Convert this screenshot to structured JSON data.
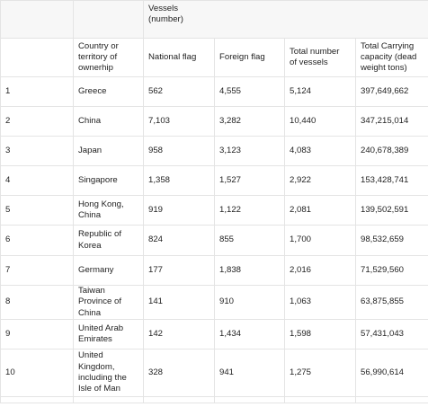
{
  "table": {
    "group_header": [
      "Vessels",
      "(number)"
    ],
    "columns": [
      {
        "lines": [
          "Country or",
          "territory of",
          "ownerhip"
        ]
      },
      {
        "lines": [
          "National flag"
        ]
      },
      {
        "lines": [
          "Foreign flag"
        ]
      },
      {
        "lines": [
          "Total number",
          "of vessels"
        ]
      },
      {
        "lines": [
          "Total Carrying",
          "capacity (dead",
          "weight tons)"
        ]
      }
    ],
    "rows": [
      {
        "rank": "1",
        "country": [
          "Greece"
        ],
        "national": "562",
        "foreign": "4,555",
        "total": "5,124",
        "capacity": "397,649,662"
      },
      {
        "rank": "2",
        "country": [
          "China"
        ],
        "national": "7,103",
        "foreign": "3,282",
        "total": "10,440",
        "capacity": "347,215,014"
      },
      {
        "rank": "3",
        "country": [
          "Japan"
        ],
        "national": "958",
        "foreign": "3,123",
        "total": "4,083",
        "capacity": "240,678,389"
      },
      {
        "rank": "4",
        "country": [
          "Singapore"
        ],
        "national": "1,358",
        "foreign": "1,527",
        "total": "2,922",
        "capacity": "153,428,741"
      },
      {
        "rank": "5",
        "country": [
          "Hong Kong,",
          "China"
        ],
        "national": "919",
        "foreign": "1,122",
        "total": "2,081",
        "capacity": "139,502,591"
      },
      {
        "rank": "6",
        "country": [
          "Republic of",
          "Korea"
        ],
        "national": "824",
        "foreign": "855",
        "total": "1,700",
        "capacity": "98,532,659"
      },
      {
        "rank": "7",
        "country": [
          "Germany"
        ],
        "national": "177",
        "foreign": "1,838",
        "total": "2,016",
        "capacity": "71,529,560"
      },
      {
        "rank": "8",
        "country": [
          "Taiwan",
          "Province of",
          "China"
        ],
        "national": "141",
        "foreign": "910",
        "total": "1,063",
        "capacity": "63,875,855"
      },
      {
        "rank": "9",
        "country": [
          "United Arab",
          "Emirates"
        ],
        "national": "142",
        "foreign": "1,434",
        "total": "1,598",
        "capacity": "57,431,043"
      },
      {
        "rank": "10",
        "country": [
          "United",
          "Kingdom,",
          "including the",
          "Isle of Man"
        ],
        "national": "328",
        "foreign": "941",
        "total": "1,275",
        "capacity": "56,990,614"
      }
    ]
  }
}
